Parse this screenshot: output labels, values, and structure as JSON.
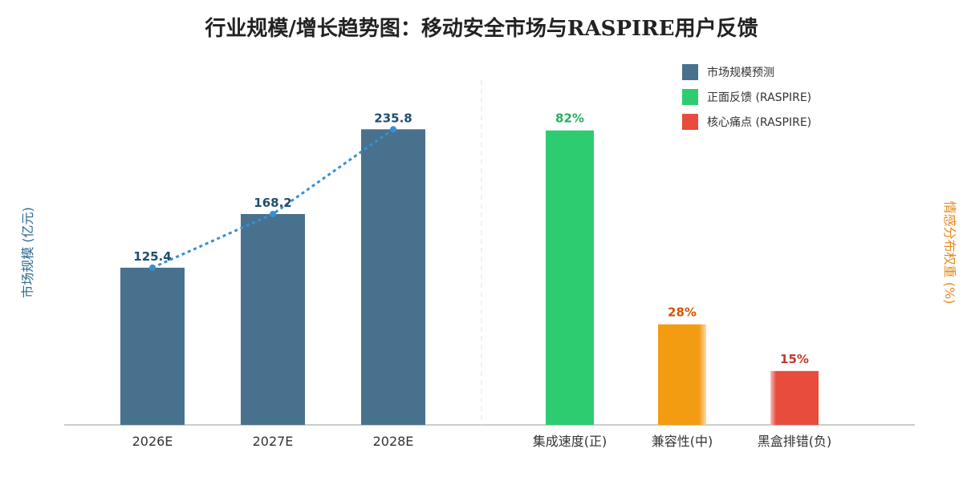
{
  "chart_data": {
    "type": "bar",
    "title": "行业规模/增长趋势图：移动安全市场与RASPIRE用户反馈",
    "left_panel": {
      "categories": [
        "2026E",
        "2027E",
        "2028E"
      ],
      "values": [
        125.4,
        168.2,
        235.8
      ],
      "value_labels": [
        "125.4",
        "168.2",
        "235.8"
      ],
      "series_name": "市场规模预测",
      "trend_line": true,
      "ylabel": "市场规模 (亿元)",
      "ylim": [
        0,
        275
      ]
    },
    "right_panel": {
      "categories": [
        "集成速度(正)",
        "兼容性(中)",
        "黑盒排错(负)"
      ],
      "values": [
        82,
        28,
        15
      ],
      "value_labels": [
        "82%",
        "28%",
        "15%"
      ],
      "ylabel": "情感分布权重 (%)",
      "ylim": [
        0,
        96
      ]
    },
    "legend": {
      "placement": "top-right",
      "items": [
        {
          "label": "市场规模预测",
          "color": "#48718e"
        },
        {
          "label": "正面反馈 (RASPIRE)",
          "color": "#2ecc71"
        },
        {
          "label": "核心痛点 (RASPIRE)",
          "color": "#e74c3c"
        }
      ]
    },
    "colors": {
      "market": "#48718e",
      "market_label": "#1f4e6e",
      "trend": "#3590d3",
      "positive": "#2ecc71",
      "positive_label": "#27ae60",
      "neutral": "#f39c12",
      "neutral_label": "#d35400",
      "negative": "#e74c3c",
      "negative_label": "#c0392b"
    }
  }
}
